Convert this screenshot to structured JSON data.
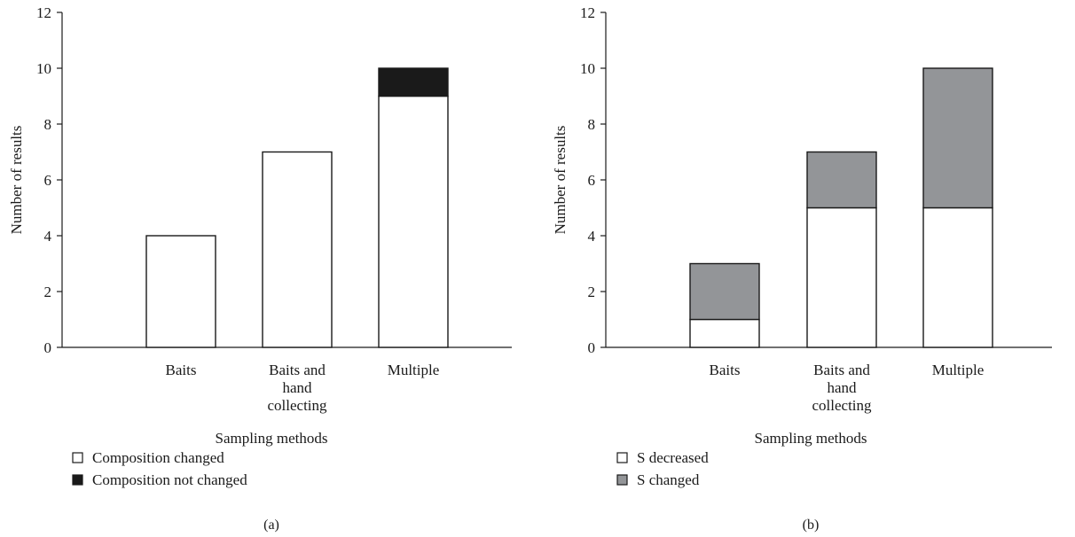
{
  "chart_data": [
    {
      "panel_label": "(a)",
      "type": "bar",
      "stacked": true,
      "categories": [
        [
          "Baits"
        ],
        [
          "Baits and",
          "hand",
          "collecting"
        ],
        [
          "Multiple"
        ]
      ],
      "series": [
        {
          "name": "Composition changed",
          "values": [
            4,
            7,
            9
          ],
          "color": "#ffffff"
        },
        {
          "name": "Composition not changed",
          "values": [
            0,
            0,
            1
          ],
          "color": "#1a1a1a"
        }
      ],
      "xlabel": "Sampling methods",
      "ylabel": "Number of results",
      "ylim": [
        0,
        12
      ],
      "yticks": [
        0,
        2,
        4,
        6,
        8,
        10,
        12
      ],
      "grid": false,
      "legend_position": "bottom-left"
    },
    {
      "panel_label": "(b)",
      "type": "bar",
      "stacked": true,
      "categories": [
        [
          "Baits"
        ],
        [
          "Baits and",
          "hand",
          "collecting"
        ],
        [
          "Multiple"
        ]
      ],
      "series": [
        {
          "name": "S decreased",
          "values": [
            1,
            5,
            5
          ],
          "color": "#ffffff"
        },
        {
          "name": "S changed",
          "values": [
            2,
            2,
            5
          ],
          "color": "#939598"
        }
      ],
      "xlabel": "Sampling methods",
      "ylabel": "Number of results",
      "ylim": [
        0,
        12
      ],
      "yticks": [
        0,
        2,
        4,
        6,
        8,
        10,
        12
      ],
      "grid": false,
      "legend_position": "bottom-left"
    }
  ]
}
